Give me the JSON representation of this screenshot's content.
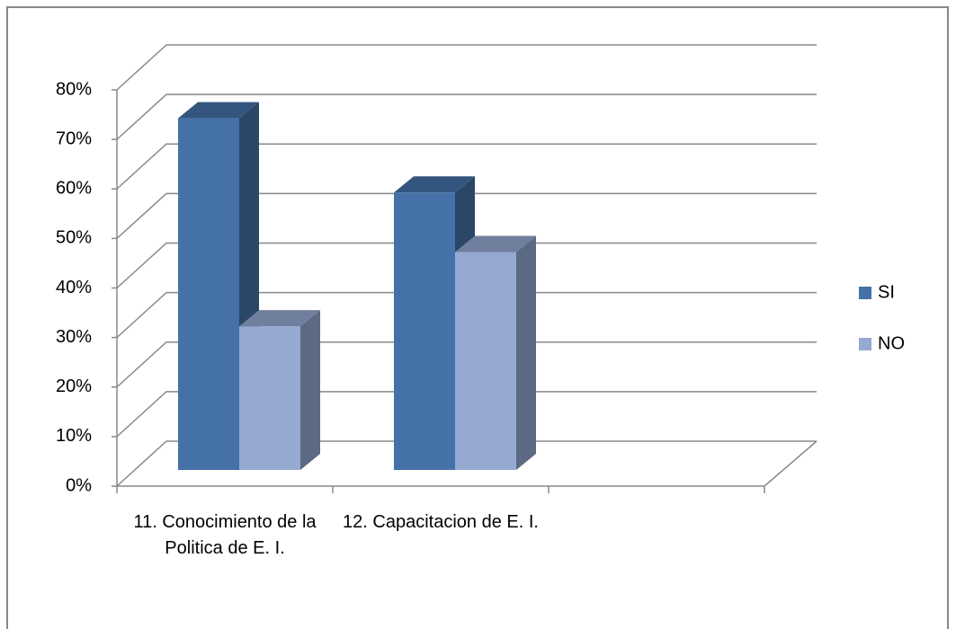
{
  "chart_data": {
    "type": "bar3d",
    "categories": [
      "11. Conocimiento de  la Politica de E. I.",
      "12. Capacitacion de E. I.",
      null
    ],
    "series": [
      {
        "name": "SI",
        "color": "#4472a8",
        "values": [
          71,
          56,
          null
        ]
      },
      {
        "name": "NO",
        "color": "#95a9d2",
        "values": [
          29,
          44,
          null
        ]
      }
    ],
    "ylim": [
      0,
      80
    ],
    "yticks": [
      {
        "value": 0,
        "label": "0%"
      },
      {
        "value": 10,
        "label": "10%"
      },
      {
        "value": 20,
        "label": "20%"
      },
      {
        "value": 30,
        "label": "30%"
      },
      {
        "value": 40,
        "label": "40%"
      },
      {
        "value": 50,
        "label": "50%"
      },
      {
        "value": 60,
        "label": "60%"
      },
      {
        "value": 70,
        "label": "70%"
      },
      {
        "value": 80,
        "label": "80%"
      }
    ],
    "grid": true,
    "legend": "right"
  }
}
